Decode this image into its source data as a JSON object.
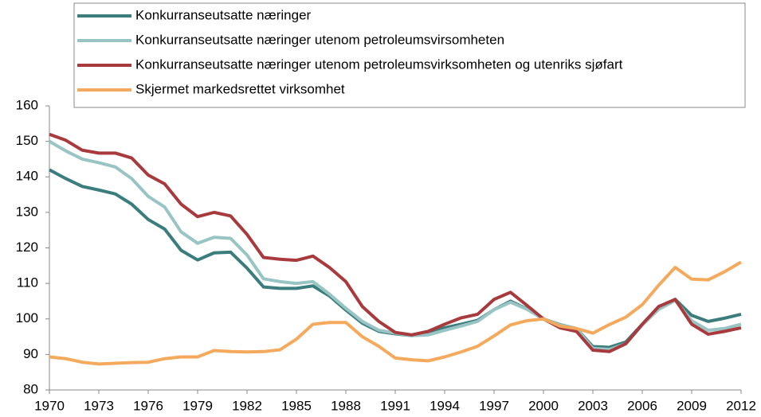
{
  "chart_data": {
    "type": "line",
    "x": [
      1970,
      1971,
      1972,
      1973,
      1974,
      1975,
      1976,
      1977,
      1978,
      1979,
      1980,
      1981,
      1982,
      1983,
      1984,
      1985,
      1986,
      1987,
      1988,
      1989,
      1990,
      1991,
      1992,
      1993,
      1994,
      1995,
      1996,
      1997,
      1998,
      1999,
      2000,
      2001,
      2002,
      2003,
      2004,
      2005,
      2006,
      2007,
      2008,
      2009,
      2010,
      2011,
      2012
    ],
    "series": [
      {
        "name": "Konkurranseutsatte næringer",
        "color": "#3a7d7c",
        "values": [
          142,
          139.5,
          137.3,
          136.3,
          135.2,
          132.3,
          128,
          125.3,
          119.3,
          116.6,
          118.6,
          118.8,
          114.3,
          109,
          108.6,
          108.6,
          109.3,
          106.5,
          102.5,
          98.8,
          96.5,
          95.8,
          95.3,
          96.3,
          97.5,
          98.5,
          99.6,
          102.6,
          105,
          102.8,
          100,
          98.4,
          97.3,
          92.2,
          92,
          93.5,
          98.5,
          103.3,
          105.5,
          101,
          99.3,
          100.2,
          101.3
        ]
      },
      {
        "name": "Konkurranseutsatte næringer utenom petroleumsvirsomheten",
        "color": "#98c4c4",
        "values": [
          150,
          147.3,
          145,
          144,
          142.8,
          139.5,
          134.5,
          131.5,
          124.5,
          121.3,
          123,
          122.7,
          118,
          111.3,
          110.5,
          110,
          110.5,
          107,
          103,
          99.3,
          96.8,
          96,
          95.3,
          95.5,
          96.8,
          98,
          99.3,
          102.6,
          104.7,
          102.7,
          100,
          98.3,
          97.3,
          91.7,
          91.4,
          93,
          98.3,
          102.7,
          105.2,
          99.5,
          96.8,
          97.3,
          98.5
        ]
      },
      {
        "name": "Konkurranseutsatte næringer utenom petroleumsvirksomheten og utenriks sjøfart",
        "color": "#a83a3e",
        "values": [
          152,
          150.3,
          147.5,
          146.7,
          146.7,
          145.3,
          140.5,
          138,
          132.3,
          128.8,
          130,
          129,
          123.8,
          117.3,
          116.8,
          116.5,
          117.7,
          114.5,
          110.5,
          103.5,
          99.3,
          96.2,
          95.5,
          96.5,
          98.5,
          100.3,
          101.3,
          105.5,
          107.5,
          103.8,
          100,
          97.5,
          96.5,
          91.2,
          90.8,
          93,
          98.5,
          103.5,
          105.5,
          98.5,
          95.7,
          96.5,
          97.5
        ]
      },
      {
        "name": "Skjermet markedsrettet virksomhet",
        "color": "#f5a95c",
        "values": [
          89.3,
          88.8,
          87.8,
          87.3,
          87.5,
          87.7,
          87.8,
          88.8,
          89.3,
          89.3,
          91.1,
          90.8,
          90.7,
          90.8,
          91.3,
          94.3,
          98.5,
          99,
          99,
          95,
          92.3,
          89,
          88.5,
          88.2,
          89.3,
          90.7,
          92.3,
          95.2,
          98.3,
          99.5,
          100,
          98,
          97.3,
          96,
          98.4,
          100.5,
          104,
          109.5,
          114.5,
          111.2,
          111,
          113.3,
          116
        ]
      }
    ],
    "xlim": [
      1970,
      2012
    ],
    "xticks": [
      1970,
      1973,
      1976,
      1979,
      1982,
      1985,
      1988,
      1991,
      1994,
      1997,
      2000,
      2003,
      2006,
      2009,
      2012
    ],
    "ylim": [
      80,
      160
    ],
    "yticks": [
      80,
      90,
      100,
      110,
      120,
      130,
      140,
      150,
      160
    ]
  }
}
